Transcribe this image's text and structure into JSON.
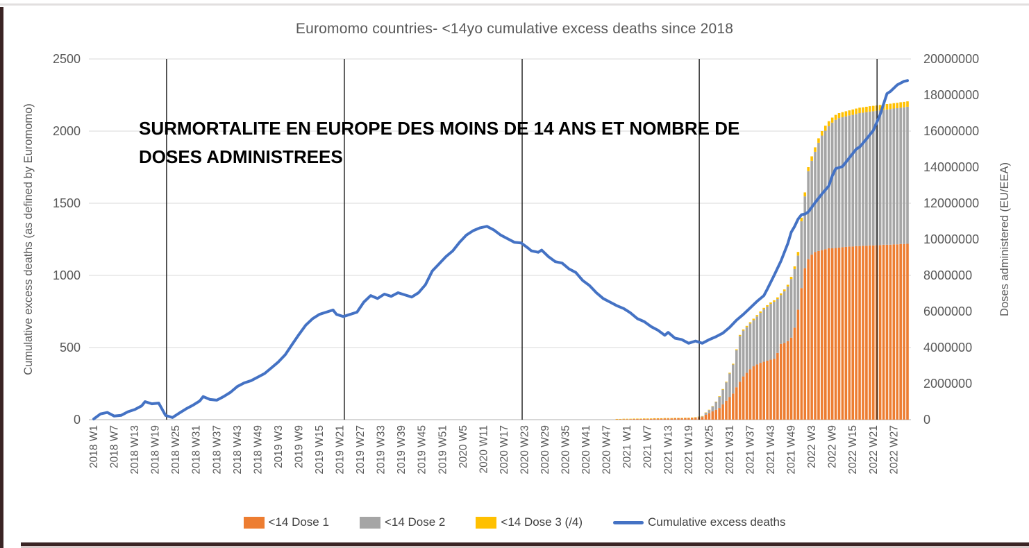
{
  "title": "Euromomo countries- <14yo cumulative excess deaths since 2018",
  "annotation": {
    "line1": "SURMORTALITE EN EUROPE DES MOINS DE 14 ANS ET  NOMBRE DE",
    "line2": "DOSES  ADMINISTREES"
  },
  "left_axis": {
    "label": "Cumulative excess deaths (as defined by Euromomo)",
    "ticks": [
      0,
      500,
      1000,
      1500,
      2000,
      2500
    ]
  },
  "right_axis": {
    "label": "Doses administered (EU/EEA)",
    "ticks": [
      0,
      2000000,
      4000000,
      6000000,
      8000000,
      10000000,
      12000000,
      14000000,
      16000000,
      18000000,
      20000000
    ]
  },
  "x_axis": {
    "labels": [
      "2018 W1",
      "2018 W7",
      "2018 W13",
      "2018 W19",
      "2018 W25",
      "2018 W31",
      "2018 W37",
      "2018 W43",
      "2018 W49",
      "2019 W3",
      "2019 W9",
      "2019 W15",
      "2019 W21",
      "2019 W27",
      "2019 W33",
      "2019 W39",
      "2019 W45",
      "2019 W51",
      "2020 W5",
      "2020 W11",
      "2020 W17",
      "2020 W23",
      "2020 W29",
      "2020 W35",
      "2020 W41",
      "2020 W47",
      "2021 W1",
      "2021 W7",
      "2021 W13",
      "2021 W19",
      "2021 W25",
      "2021 W31",
      "2021 W37",
      "2021 W43",
      "2021 W49",
      "2022 W3",
      "2022 W9",
      "2022 W15",
      "2022 W21",
      "2022 W27"
    ],
    "label_step_slots": 6,
    "total_slots": 239
  },
  "legend": [
    {
      "label": "<14 Dose 1",
      "color": "#ED7D31",
      "type": "box"
    },
    {
      "label": "<14 Dose 2",
      "color": "#A5A5A5",
      "type": "box"
    },
    {
      "label": "<14 Dose 3 (/4)",
      "color": "#FFC000",
      "type": "box"
    },
    {
      "label": "Cumulative excess deaths",
      "color": "#4472C4",
      "type": "line"
    }
  ],
  "colors": {
    "dose1": "#ED7D31",
    "dose2": "#A5A5A5",
    "dose3": "#FFC000",
    "excess_line": "#4472C4",
    "grid": "#D9D9D9",
    "axis": "#BFBFBF",
    "tick_text": "#595959",
    "annotation_line": "#1a1a1a"
  },
  "chart_data": {
    "type": "combo",
    "y_left_range": [
      0,
      2500
    ],
    "y_right_range": [
      0,
      20000000
    ],
    "grid": "horizontal-only",
    "legend_position": "bottom",
    "annotation_vlines_slot": [
      21.3,
      73.3,
      125.3,
      177.1,
      229.1
    ],
    "bar_series_names": [
      "<14 Dose 1",
      "<14 Dose 2",
      "<14 Dose 3 (/4)"
    ],
    "bars_unit": "millions of doses, stacked [slot, dose1, dose2, dose3]",
    "bars": [
      [
        153,
        0.02,
        0,
        0.02
      ],
      [
        154,
        0.02,
        0,
        0.02
      ],
      [
        155,
        0.03,
        0,
        0.02
      ],
      [
        156,
        0.03,
        0,
        0.02
      ],
      [
        157,
        0.03,
        0,
        0.02
      ],
      [
        158,
        0.04,
        0,
        0.02
      ],
      [
        159,
        0.04,
        0,
        0.02
      ],
      [
        160,
        0.04,
        0,
        0.02
      ],
      [
        161,
        0.05,
        0,
        0.02
      ],
      [
        162,
        0.05,
        0,
        0.02
      ],
      [
        163,
        0.05,
        0,
        0.02
      ],
      [
        164,
        0.06,
        0,
        0.02
      ],
      [
        165,
        0.06,
        0,
        0.02
      ],
      [
        166,
        0.06,
        0,
        0.02
      ],
      [
        167,
        0.07,
        0,
        0.02
      ],
      [
        168,
        0.07,
        0,
        0.02
      ],
      [
        169,
        0.07,
        0,
        0.02
      ],
      [
        170,
        0.08,
        0,
        0.02
      ],
      [
        171,
        0.08,
        0,
        0.02
      ],
      [
        172,
        0.08,
        0,
        0.02
      ],
      [
        173,
        0.09,
        0,
        0.02
      ],
      [
        174,
        0.09,
        0,
        0.02
      ],
      [
        175,
        0.1,
        0,
        0.02
      ],
      [
        176,
        0.11,
        0.01,
        0.02
      ],
      [
        177,
        0.13,
        0.02,
        0.02
      ],
      [
        178,
        0.15,
        0.03,
        0.02
      ],
      [
        179,
        0.27,
        0.11,
        0.02
      ],
      [
        180,
        0.36,
        0.17,
        0.02
      ],
      [
        181,
        0.46,
        0.27,
        0.02
      ],
      [
        182,
        0.55,
        0.43,
        0.02
      ],
      [
        183,
        0.65,
        0.62,
        0.03
      ],
      [
        184,
        0.85,
        0.82,
        0.03
      ],
      [
        185,
        1.05,
        1.02,
        0.03
      ],
      [
        186,
        1.25,
        1.31,
        0.04
      ],
      [
        187,
        1.45,
        1.61,
        0.04
      ],
      [
        188,
        1.8,
        2.05,
        0.05
      ],
      [
        189,
        2.1,
        2.54,
        0.06
      ],
      [
        190,
        2.4,
        2.54,
        0.06
      ],
      [
        191,
        2.6,
        2.53,
        0.07
      ],
      [
        192,
        2.8,
        2.53,
        0.07
      ],
      [
        193,
        2.96,
        2.56,
        0.08
      ],
      [
        194,
        3.06,
        2.66,
        0.08
      ],
      [
        195,
        3.15,
        2.77,
        0.08
      ],
      [
        196,
        3.21,
        2.91,
        0.08
      ],
      [
        197,
        3.27,
        3.0,
        0.08
      ],
      [
        198,
        3.33,
        3.09,
        0.08
      ],
      [
        199,
        3.38,
        3.16,
        0.08
      ],
      [
        200,
        3.7,
        2.99,
        0.09
      ],
      [
        201,
        4.2,
        2.71,
        0.09
      ],
      [
        202,
        4.25,
        2.87,
        0.1
      ],
      [
        203,
        4.35,
        3.03,
        0.1
      ],
      [
        204,
        4.55,
        3.25,
        0.12
      ],
      [
        205,
        5.1,
        3.25,
        0.15
      ],
      [
        206,
        6.1,
        3.0,
        0.2
      ],
      [
        207,
        7.3,
        3.7,
        0.2
      ],
      [
        208,
        8.4,
        3.98,
        0.22
      ],
      [
        209,
        8.9,
        4.88,
        0.22
      ],
      [
        210,
        9.15,
        5.2,
        0.25
      ],
      [
        211,
        9.3,
        5.55,
        0.25
      ],
      [
        212,
        9.35,
        6.0,
        0.25
      ],
      [
        213,
        9.4,
        6.35,
        0.25
      ],
      [
        214,
        9.45,
        6.57,
        0.28
      ],
      [
        215,
        9.5,
        6.77,
        0.28
      ],
      [
        216,
        9.5,
        6.97,
        0.28
      ],
      [
        217,
        9.52,
        7.1,
        0.28
      ],
      [
        218,
        9.54,
        7.18,
        0.28
      ],
      [
        219,
        9.56,
        7.21,
        0.28
      ],
      [
        220,
        9.58,
        7.24,
        0.28
      ],
      [
        221,
        9.6,
        7.27,
        0.28
      ],
      [
        222,
        9.6,
        7.3,
        0.3
      ],
      [
        223,
        9.62,
        7.33,
        0.3
      ],
      [
        224,
        9.62,
        7.38,
        0.3
      ],
      [
        225,
        9.64,
        7.38,
        0.3
      ],
      [
        226,
        9.64,
        7.41,
        0.3
      ],
      [
        227,
        9.66,
        7.42,
        0.3
      ],
      [
        228,
        9.66,
        7.44,
        0.3
      ],
      [
        229,
        9.68,
        7.44,
        0.3
      ],
      [
        230,
        9.68,
        7.47,
        0.3
      ],
      [
        231,
        9.7,
        7.48,
        0.3
      ],
      [
        232,
        9.7,
        7.5,
        0.3
      ],
      [
        233,
        9.7,
        7.52,
        0.3
      ],
      [
        234,
        9.72,
        7.53,
        0.3
      ],
      [
        235,
        9.72,
        7.55,
        0.3
      ],
      [
        236,
        9.74,
        7.56,
        0.3
      ],
      [
        237,
        9.74,
        7.58,
        0.3
      ],
      [
        238,
        9.75,
        7.6,
        0.3
      ]
    ],
    "line_series_name": "Cumulative excess deaths",
    "line_unit": "[slot, cumulative excess deaths (left axis)]",
    "line": [
      [
        0,
        5
      ],
      [
        2,
        40
      ],
      [
        4,
        50
      ],
      [
        6,
        25
      ],
      [
        8,
        30
      ],
      [
        10,
        55
      ],
      [
        12,
        70
      ],
      [
        14,
        95
      ],
      [
        15,
        125
      ],
      [
        17,
        110
      ],
      [
        19,
        115
      ],
      [
        21,
        30
      ],
      [
        23,
        15
      ],
      [
        25,
        45
      ],
      [
        27,
        75
      ],
      [
        29,
        100
      ],
      [
        31,
        130
      ],
      [
        32,
        160
      ],
      [
        34,
        140
      ],
      [
        36,
        135
      ],
      [
        38,
        160
      ],
      [
        40,
        190
      ],
      [
        42,
        230
      ],
      [
        44,
        255
      ],
      [
        46,
        270
      ],
      [
        48,
        295
      ],
      [
        50,
        320
      ],
      [
        52,
        360
      ],
      [
        54,
        400
      ],
      [
        56,
        450
      ],
      [
        58,
        520
      ],
      [
        60,
        590
      ],
      [
        62,
        655
      ],
      [
        64,
        700
      ],
      [
        66,
        730
      ],
      [
        68,
        745
      ],
      [
        70,
        760
      ],
      [
        71,
        730
      ],
      [
        73,
        715
      ],
      [
        75,
        730
      ],
      [
        77,
        745
      ],
      [
        79,
        815
      ],
      [
        81,
        860
      ],
      [
        83,
        840
      ],
      [
        85,
        870
      ],
      [
        87,
        855
      ],
      [
        89,
        880
      ],
      [
        91,
        865
      ],
      [
        93,
        850
      ],
      [
        95,
        880
      ],
      [
        97,
        935
      ],
      [
        99,
        1030
      ],
      [
        101,
        1080
      ],
      [
        103,
        1130
      ],
      [
        105,
        1170
      ],
      [
        107,
        1230
      ],
      [
        109,
        1280
      ],
      [
        111,
        1310
      ],
      [
        113,
        1330
      ],
      [
        115,
        1340
      ],
      [
        117,
        1315
      ],
      [
        119,
        1280
      ],
      [
        121,
        1255
      ],
      [
        123,
        1230
      ],
      [
        125,
        1225
      ],
      [
        127,
        1190
      ],
      [
        128,
        1170
      ],
      [
        130,
        1160
      ],
      [
        131,
        1175
      ],
      [
        133,
        1130
      ],
      [
        135,
        1095
      ],
      [
        137,
        1085
      ],
      [
        139,
        1045
      ],
      [
        141,
        1020
      ],
      [
        143,
        965
      ],
      [
        145,
        930
      ],
      [
        147,
        880
      ],
      [
        149,
        840
      ],
      [
        151,
        815
      ],
      [
        153,
        790
      ],
      [
        155,
        770
      ],
      [
        157,
        740
      ],
      [
        159,
        700
      ],
      [
        161,
        680
      ],
      [
        163,
        645
      ],
      [
        165,
        620
      ],
      [
        167,
        585
      ],
      [
        168,
        605
      ],
      [
        170,
        565
      ],
      [
        172,
        555
      ],
      [
        174,
        530
      ],
      [
        176,
        545
      ],
      [
        178,
        530
      ],
      [
        180,
        555
      ],
      [
        182,
        575
      ],
      [
        184,
        600
      ],
      [
        186,
        640
      ],
      [
        188,
        690
      ],
      [
        190,
        730
      ],
      [
        192,
        775
      ],
      [
        194,
        820
      ],
      [
        196,
        860
      ],
      [
        197,
        905
      ],
      [
        199,
        1000
      ],
      [
        201,
        1100
      ],
      [
        203,
        1220
      ],
      [
        204,
        1300
      ],
      [
        205,
        1340
      ],
      [
        206,
        1390
      ],
      [
        207,
        1420
      ],
      [
        208,
        1425
      ],
      [
        209,
        1440
      ],
      [
        211,
        1505
      ],
      [
        213,
        1565
      ],
      [
        215,
        1620
      ],
      [
        216,
        1690
      ],
      [
        217,
        1740
      ],
      [
        219,
        1755
      ],
      [
        221,
        1815
      ],
      [
        223,
        1875
      ],
      [
        224,
        1890
      ],
      [
        226,
        1945
      ],
      [
        228,
        2005
      ],
      [
        230,
        2115
      ],
      [
        232,
        2260
      ],
      [
        233,
        2275
      ],
      [
        235,
        2320
      ],
      [
        237,
        2345
      ],
      [
        238,
        2350
      ]
    ]
  }
}
